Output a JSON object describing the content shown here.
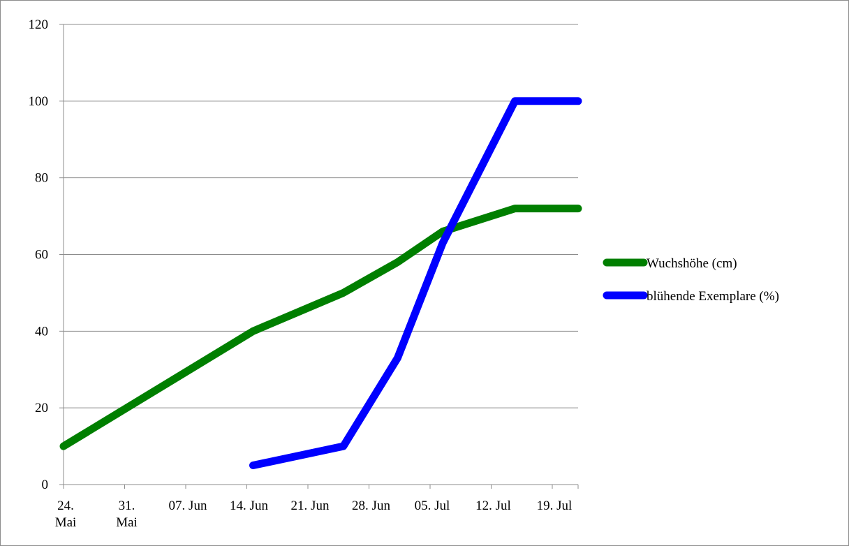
{
  "chart_data": {
    "type": "line",
    "x_tick_labels": [
      [
        "24.",
        "Mai"
      ],
      [
        "31.",
        "Mai"
      ],
      [
        "07. Jun"
      ],
      [
        "14. Jun"
      ],
      [
        "21. Jun"
      ],
      [
        "28. Jun"
      ],
      [
        "05. Jul"
      ],
      [
        "12. Jul"
      ],
      [
        "19. Jul"
      ]
    ],
    "x_range": [
      "2013-05-24",
      "2013-07-20"
    ],
    "y_ticks": [
      0,
      20,
      40,
      60,
      80,
      100,
      120
    ],
    "ylim": [
      0,
      120
    ],
    "grid": "horizontal",
    "legend_position": "right",
    "series": [
      {
        "name": "Wuchshöhe (cm)",
        "color": "#007f00",
        "points": [
          {
            "x": "2013-05-24",
            "y": 10
          },
          {
            "x": "2013-06-14",
            "y": 40
          },
          {
            "x": "2013-06-24",
            "y": 50
          },
          {
            "x": "2013-06-30",
            "y": 58
          },
          {
            "x": "2013-07-05",
            "y": 66
          },
          {
            "x": "2013-07-13",
            "y": 72
          },
          {
            "x": "2013-07-20",
            "y": 72
          }
        ]
      },
      {
        "name": "blühende Exemplare (%)",
        "color": "#0000ff",
        "points": [
          {
            "x": "2013-06-14",
            "y": 5
          },
          {
            "x": "2013-06-24",
            "y": 10
          },
          {
            "x": "2013-06-30",
            "y": 33
          },
          {
            "x": "2013-07-05",
            "y": 63
          },
          {
            "x": "2013-07-13",
            "y": 100
          },
          {
            "x": "2013-07-20",
            "y": 100
          }
        ]
      }
    ]
  }
}
